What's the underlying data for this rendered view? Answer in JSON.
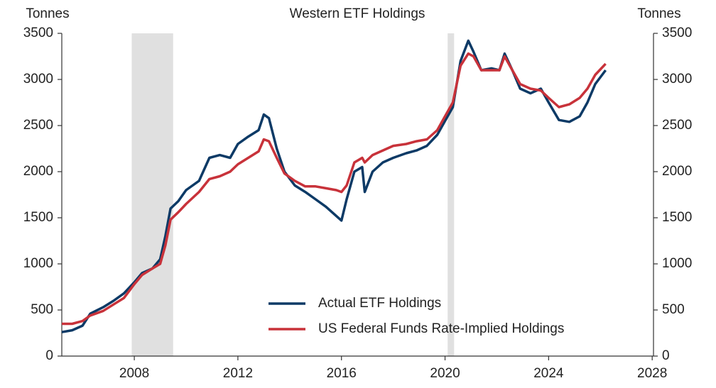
{
  "chart_data": {
    "type": "line",
    "title": "Western ETF Holdings",
    "y_label": "Tonnes",
    "y2_label": "Tonnes",
    "xlim": [
      2005.2,
      2028.05
    ],
    "xticks": [
      2008,
      2012,
      2016,
      2020,
      2024,
      2028
    ],
    "ylim": [
      0,
      3500
    ],
    "yticks": [
      0,
      500,
      1000,
      1500,
      2000,
      2500,
      3000,
      3500
    ],
    "y2lim": [
      0,
      3500
    ],
    "y2ticks": [
      0,
      500,
      1000,
      1500,
      2000,
      2500,
      3000,
      3500
    ],
    "shaded_regions": [
      [
        2007.9,
        2009.5
      ],
      [
        2020.1,
        2020.35
      ]
    ],
    "shade_color": "#e0e0e0",
    "legend": "lower right",
    "x": [
      2005.2,
      2005.6,
      2006.0,
      2006.3,
      2006.8,
      2007.2,
      2007.6,
      2008.0,
      2008.3,
      2008.7,
      2009.0,
      2009.2,
      2009.4,
      2009.7,
      2010.0,
      2010.5,
      2010.9,
      2011.3,
      2011.7,
      2012.0,
      2012.4,
      2012.8,
      2013.0,
      2013.2,
      2013.5,
      2013.8,
      2014.2,
      2014.6,
      2015.0,
      2015.4,
      2015.8,
      2016.0,
      2016.2,
      2016.5,
      2016.8,
      2016.9,
      2017.2,
      2017.6,
      2018.0,
      2018.5,
      2018.9,
      2019.3,
      2019.7,
      2020.0,
      2020.3,
      2020.6,
      2020.9,
      2021.1,
      2021.4,
      2021.8,
      2022.1,
      2022.3,
      2022.6,
      2022.9,
      2023.3,
      2023.7,
      2024.0,
      2024.4,
      2024.8,
      2025.2,
      2025.5,
      2025.8,
      2026.2
    ],
    "series": [
      {
        "name": "Actual ETF Holdings",
        "color": "#0d3a66",
        "values": [
          260,
          280,
          330,
          460,
          530,
          600,
          680,
          800,
          900,
          950,
          1050,
          1300,
          1600,
          1680,
          1800,
          1900,
          2150,
          2180,
          2150,
          2300,
          2380,
          2450,
          2620,
          2580,
          2250,
          2000,
          1850,
          1780,
          1700,
          1620,
          1520,
          1470,
          1700,
          2000,
          2050,
          1780,
          2000,
          2100,
          2150,
          2200,
          2230,
          2280,
          2400,
          2550,
          2700,
          3200,
          3420,
          3300,
          3100,
          3120,
          3100,
          3280,
          3100,
          2900,
          2850,
          2900,
          2750,
          2560,
          2540,
          2600,
          2750,
          2950,
          3100
        ]
      },
      {
        "name": "US Federal Funds Rate-Implied Holdings",
        "color": "#c8323a",
        "values": [
          350,
          350,
          380,
          440,
          490,
          560,
          630,
          780,
          880,
          950,
          1000,
          1200,
          1480,
          1560,
          1650,
          1780,
          1920,
          1950,
          2000,
          2080,
          2150,
          2220,
          2350,
          2330,
          2150,
          1980,
          1900,
          1840,
          1840,
          1820,
          1800,
          1780,
          1850,
          2100,
          2150,
          2100,
          2180,
          2230,
          2280,
          2300,
          2330,
          2350,
          2450,
          2600,
          2750,
          3150,
          3280,
          3250,
          3100,
          3100,
          3100,
          3250,
          3100,
          2950,
          2900,
          2880,
          2800,
          2700,
          2730,
          2800,
          2900,
          3050,
          3170
        ]
      }
    ]
  }
}
